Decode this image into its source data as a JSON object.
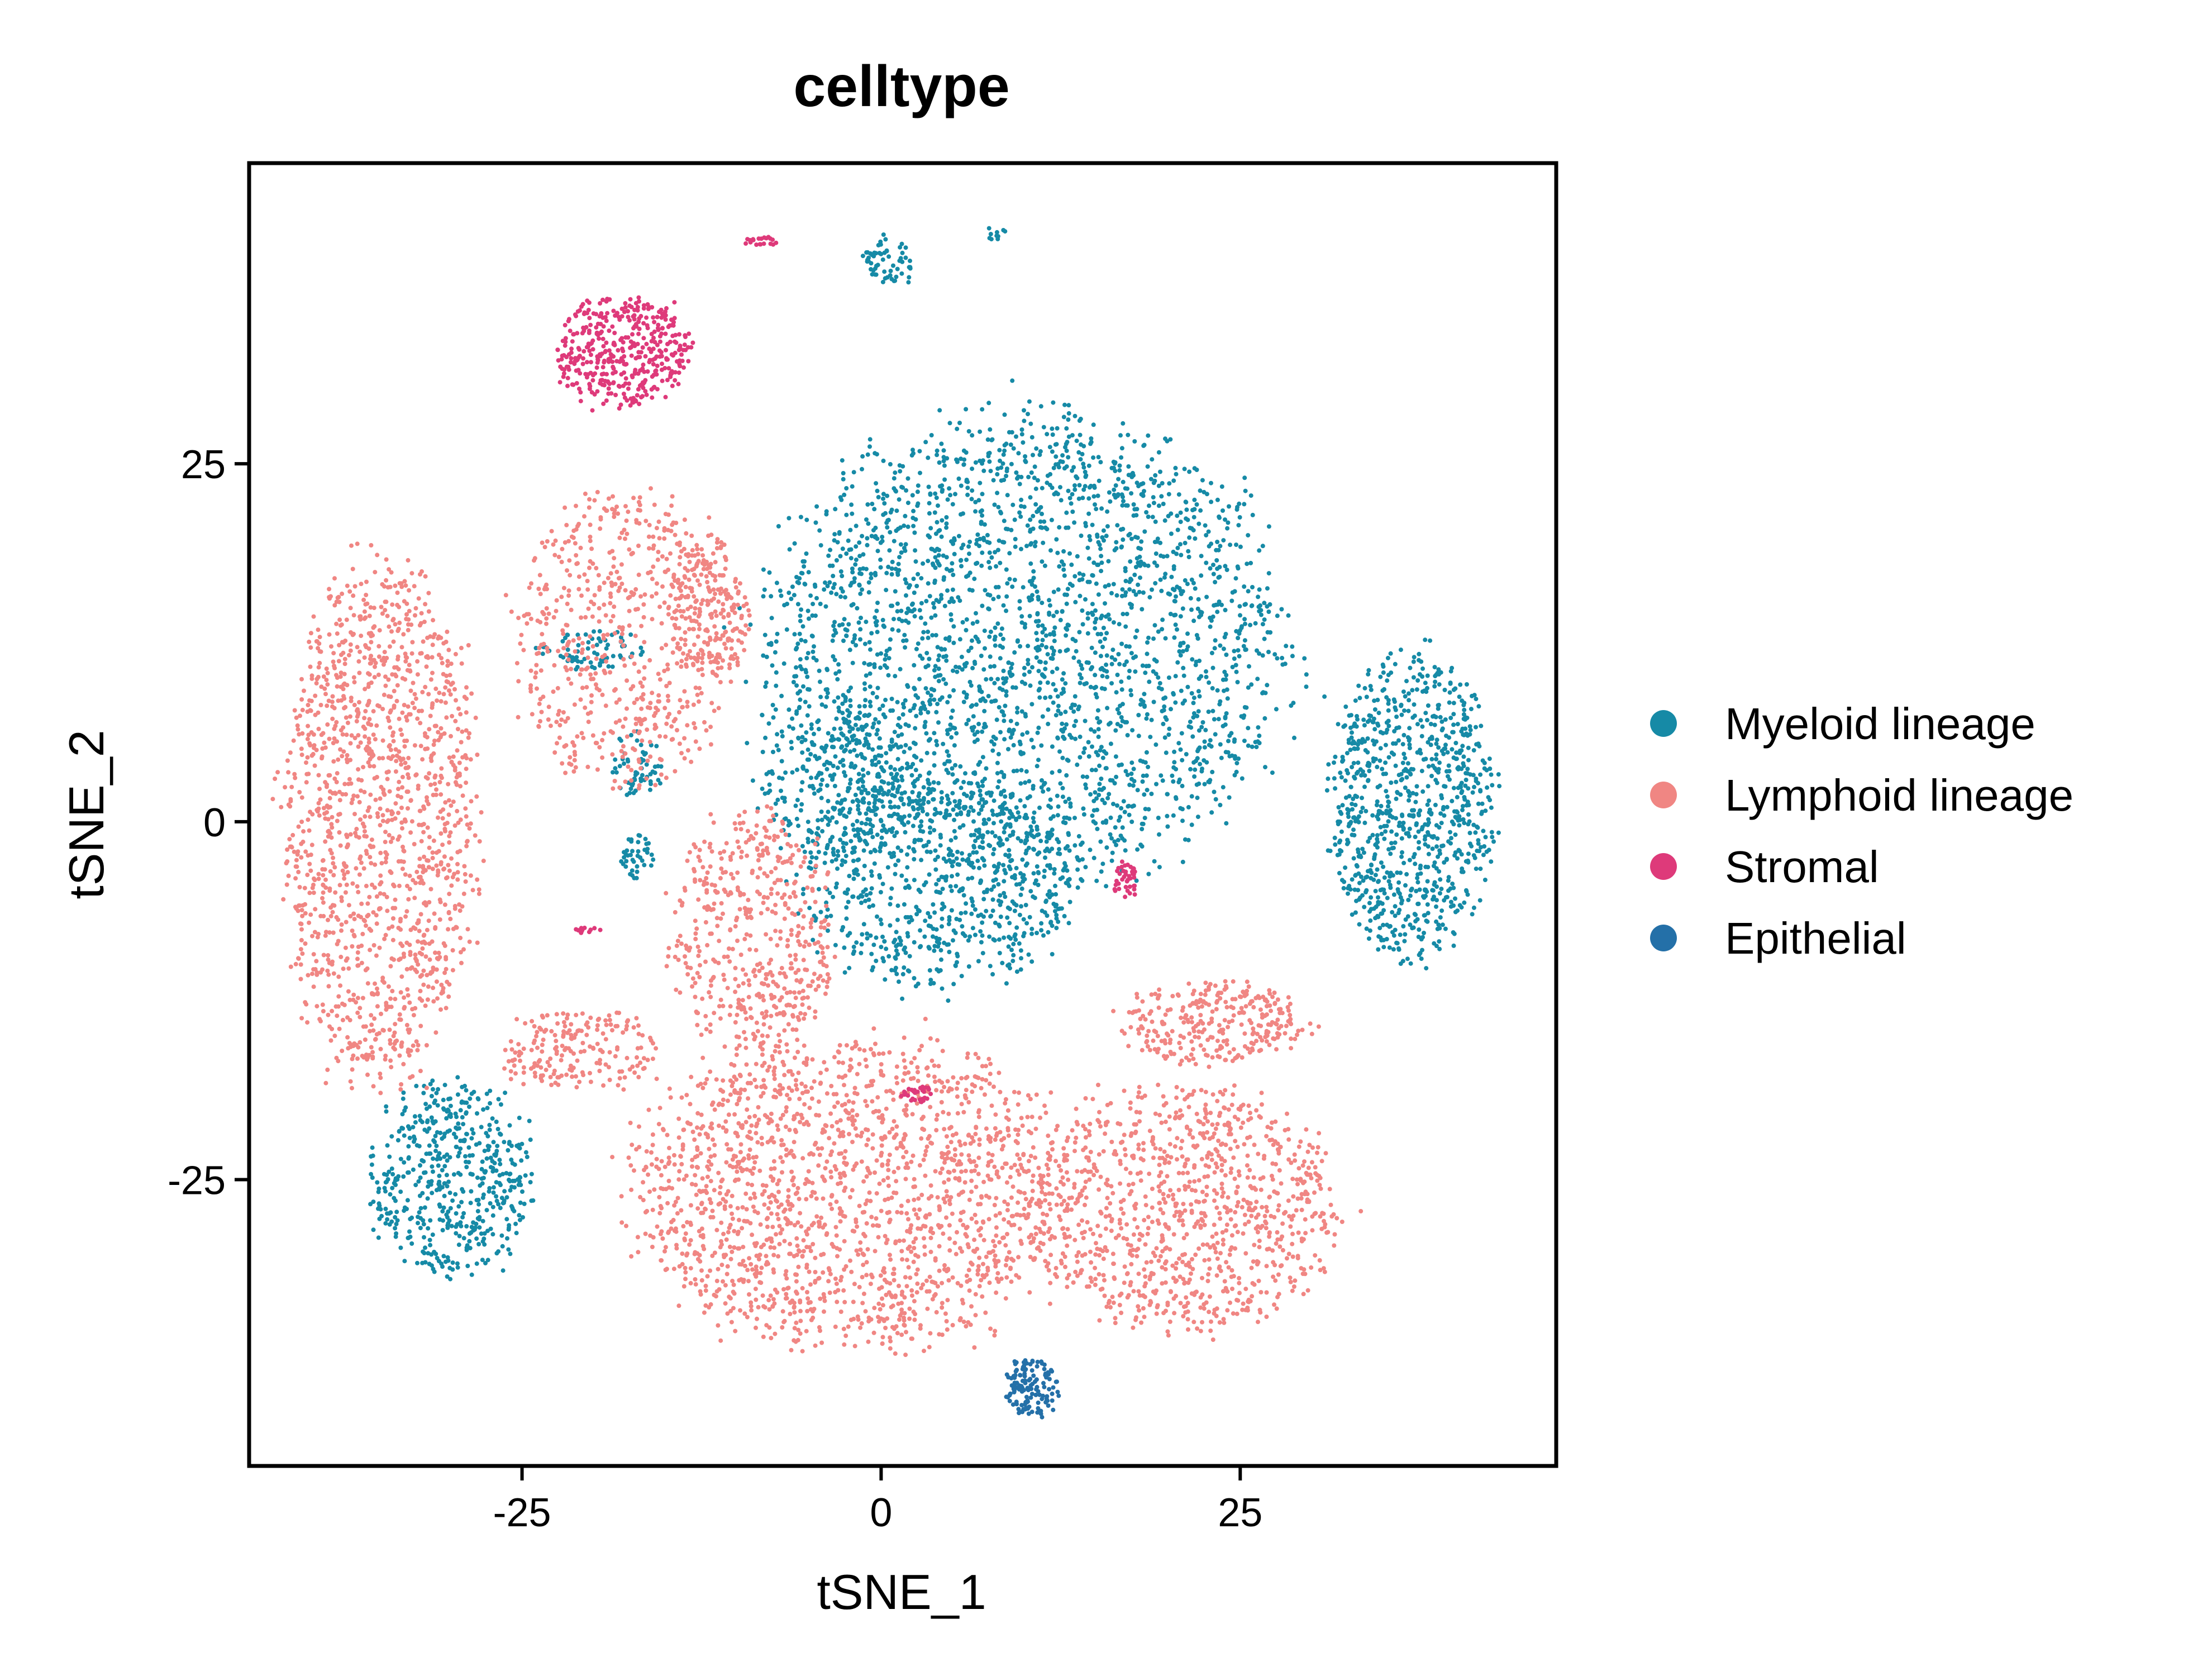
{
  "chart_data": {
    "type": "scatter",
    "title": "celltype",
    "xlabel": "tSNE_1",
    "ylabel": "tSNE_2",
    "xlim": [
      -44,
      47
    ],
    "ylim": [
      -45,
      46
    ],
    "xticks": [
      -25,
      0,
      25
    ],
    "xtick_labels": [
      "-25",
      "0",
      "25"
    ],
    "yticks": [
      -25,
      0,
      25
    ],
    "ytick_labels": [
      "-25",
      "0",
      "25"
    ],
    "grid": false,
    "legend_position": "right",
    "series": [
      {
        "name": "Myeloid lineage",
        "color": "#168AA6",
        "clusters": [
          {
            "cx": 10,
            "cy": 12,
            "rx": 19,
            "ry": 17,
            "n": 2600
          },
          {
            "cx": 4,
            "cy": -4,
            "rx": 10,
            "ry": 8,
            "n": 700
          },
          {
            "cx": -3,
            "cy": 3,
            "rx": 6,
            "ry": 6,
            "n": 260
          },
          {
            "cx": 37,
            "cy": 1,
            "rx": 6,
            "ry": 11,
            "n": 900
          },
          {
            "cx": -30,
            "cy": -25,
            "rx": 6,
            "ry": 7,
            "n": 520
          },
          {
            "cx": 0.5,
            "cy": 39,
            "rx": 2,
            "ry": 1.8,
            "n": 60
          },
          {
            "cx": 8,
            "cy": 41,
            "rx": 0.8,
            "ry": 0.6,
            "n": 10
          },
          {
            "cx": -20,
            "cy": 12,
            "rx": 4,
            "ry": 1.6,
            "n": 70
          },
          {
            "cx": -17,
            "cy": 4,
            "rx": 1.8,
            "ry": 2.5,
            "n": 60
          },
          {
            "cx": -17,
            "cy": -2.5,
            "rx": 1.2,
            "ry": 1.5,
            "n": 40
          }
        ]
      },
      {
        "name": "Lymphoid lineage",
        "color": "#F08683",
        "clusters": [
          {
            "cx": -35,
            "cy": 0,
            "rx": 7,
            "ry": 19,
            "n": 1400
          },
          {
            "cx": -18,
            "cy": 13,
            "rx": 8,
            "ry": 11,
            "n": 600
          },
          {
            "cx": -12,
            "cy": 15,
            "rx": 3,
            "ry": 5,
            "n": 200
          },
          {
            "cx": -2,
            "cy": -26,
            "rx": 16,
            "ry": 11,
            "n": 1800
          },
          {
            "cx": -9,
            "cy": -8,
            "rx": 6,
            "ry": 9,
            "n": 500
          },
          {
            "cx": 21,
            "cy": -27,
            "rx": 11,
            "ry": 9,
            "n": 1000
          },
          {
            "cx": 23,
            "cy": -14,
            "rx": 7,
            "ry": 3,
            "n": 300
          },
          {
            "cx": -21,
            "cy": -16,
            "rx": 6,
            "ry": 3,
            "n": 200
          }
        ]
      },
      {
        "name": "Stromal",
        "color": "#DE3A7A",
        "clusters": [
          {
            "cx": -18,
            "cy": 33,
            "rx": 5,
            "ry": 4,
            "n": 420
          },
          {
            "cx": -8.5,
            "cy": 40.5,
            "rx": 1.5,
            "ry": 0.4,
            "n": 20
          },
          {
            "cx": 17,
            "cy": -4,
            "rx": 0.8,
            "ry": 1.5,
            "n": 40
          },
          {
            "cx": 2.5,
            "cy": -19,
            "rx": 1.2,
            "ry": 0.6,
            "n": 30
          },
          {
            "cx": -20.5,
            "cy": -7.5,
            "rx": 1.2,
            "ry": 0.3,
            "n": 12
          }
        ]
      },
      {
        "name": "Epithelial",
        "color": "#2470A8",
        "clusters": [
          {
            "cx": 10.5,
            "cy": -39.5,
            "rx": 2,
            "ry": 2.2,
            "n": 130
          }
        ]
      }
    ]
  }
}
